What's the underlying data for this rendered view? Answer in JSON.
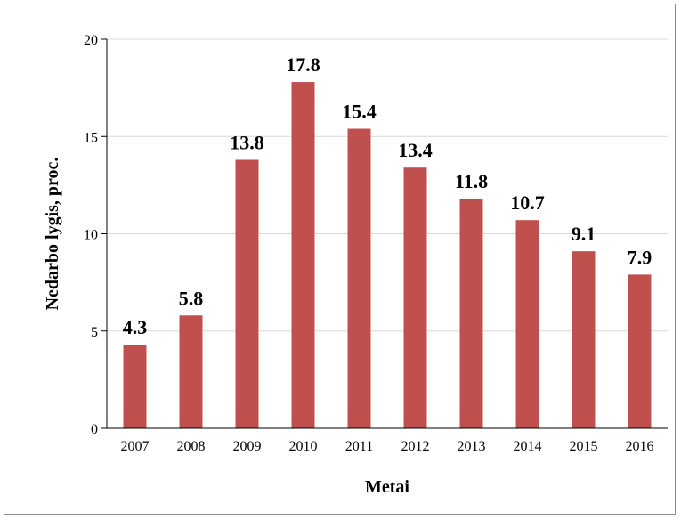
{
  "chart_data": {
    "type": "bar",
    "categories": [
      "2007",
      "2008",
      "2009",
      "2010",
      "2011",
      "2012",
      "2013",
      "2014",
      "2015",
      "2016"
    ],
    "values": [
      4.3,
      5.8,
      13.8,
      17.8,
      15.4,
      13.4,
      11.8,
      10.7,
      9.1,
      7.9
    ],
    "data_labels": [
      "4.3",
      "5.8",
      "13.8",
      "17.8",
      "15.4",
      "13.4",
      "11.8",
      "10.7",
      "9.1",
      "7.9"
    ],
    "title": "",
    "xlabel": "Metai",
    "ylabel": "Nedarbo lygis, proc.",
    "ylim": [
      0,
      20
    ],
    "yticks": [
      0,
      5,
      10,
      15,
      20
    ],
    "grid": true,
    "legend": "none",
    "bar_color": "#c0504d",
    "grid_color": "#d9d9d9"
  }
}
